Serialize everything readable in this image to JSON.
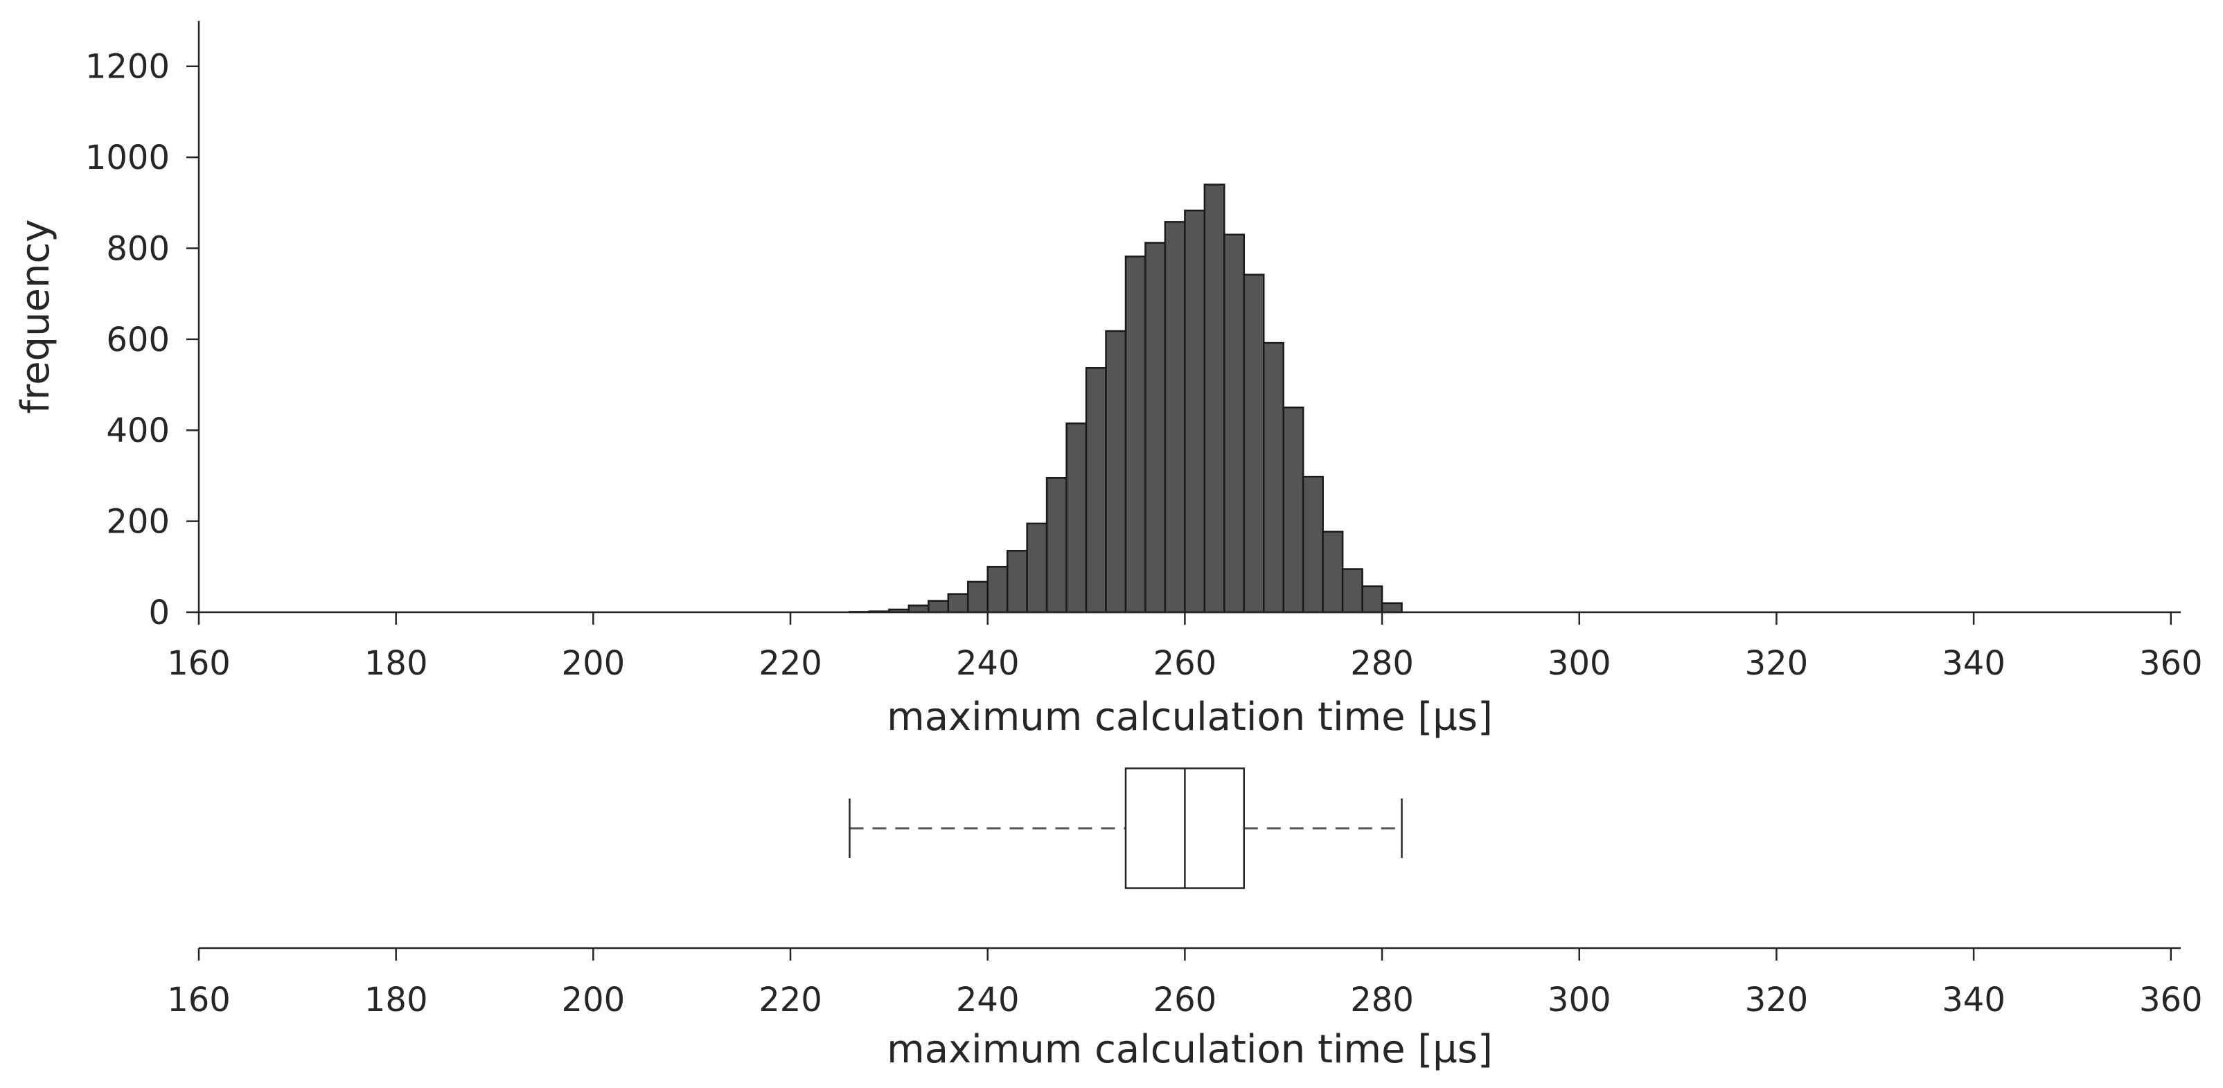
{
  "chart_data": [
    {
      "type": "histogram",
      "xlabel": "maximum calculation time [µs]",
      "ylabel": "frequency",
      "xlim": [
        160,
        361
      ],
      "ylim": [
        0,
        1300
      ],
      "xticks": [
        160,
        180,
        200,
        220,
        240,
        260,
        280,
        300,
        320,
        340,
        360
      ],
      "yticks": [
        0,
        200,
        400,
        600,
        800,
        1000,
        1200
      ],
      "bin_width": 2,
      "bins_start": [
        226,
        228,
        230,
        232,
        234,
        236,
        238,
        240,
        242,
        244,
        246,
        248,
        250,
        252,
        254,
        256,
        258,
        260,
        262,
        264,
        266,
        268,
        270,
        272,
        274,
        276,
        278,
        280
      ],
      "values": [
        1,
        2,
        6,
        15,
        25,
        40,
        67,
        100,
        135,
        195,
        295,
        415,
        537,
        618,
        782,
        812,
        858,
        883,
        940,
        830,
        742,
        592,
        450,
        298,
        177,
        95,
        57,
        20
      ],
      "bar_color": "#555555",
      "edge_color": "#1a1a1a"
    },
    {
      "type": "boxplot",
      "xlabel": "maximum calculation time [µs]",
      "xlim": [
        160,
        361
      ],
      "xticks": [
        160,
        180,
        200,
        220,
        240,
        260,
        280,
        300,
        320,
        340,
        360
      ],
      "whisker_low": 226,
      "q1": 254,
      "median": 260,
      "q3": 266,
      "whisker_high": 282
    }
  ]
}
